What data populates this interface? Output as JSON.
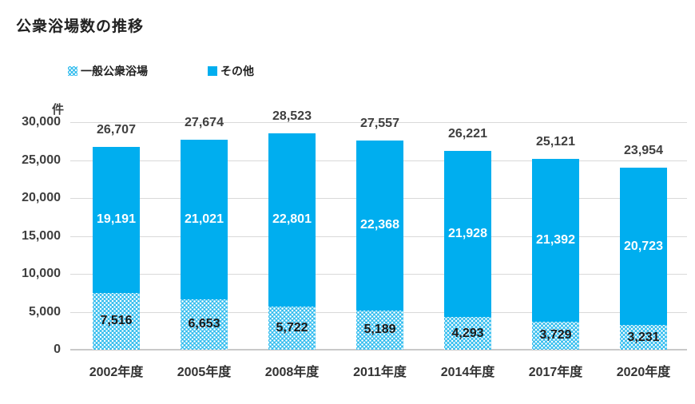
{
  "chart_data": {
    "type": "bar",
    "stacked": true,
    "title": "公衆浴場数の推移",
    "unit_label": "件",
    "categories": [
      "2002年度",
      "2005年度",
      "2008年度",
      "2011年度",
      "2014年度",
      "2017年度",
      "2020年度"
    ],
    "series": [
      {
        "name": "一般公衆浴場",
        "pattern": "dotted",
        "color": "#35BDEE",
        "label_color": "#1a1a1a",
        "values": [
          7516,
          6653,
          5722,
          5189,
          4293,
          3729,
          3231
        ]
      },
      {
        "name": "その他",
        "pattern": "solid",
        "color": "#00AEEF",
        "label_color": "#ffffff",
        "values": [
          19191,
          21021,
          22801,
          22368,
          21928,
          21392,
          20723
        ]
      }
    ],
    "totals": [
      26707,
      27674,
      28523,
      27557,
      26221,
      25121,
      23954
    ],
    "ylim": [
      0,
      30000
    ],
    "ytick_step": 5000,
    "ytick_labels": [
      "0",
      "5,000",
      "10,000",
      "15,000",
      "20,000",
      "25,000",
      "30,000"
    ],
    "grid": true,
    "legend_position": "top-left",
    "colors": {
      "grid": "#d9d9d9",
      "axis_text": "#3f3f3f",
      "title_text": "#212121"
    }
  }
}
